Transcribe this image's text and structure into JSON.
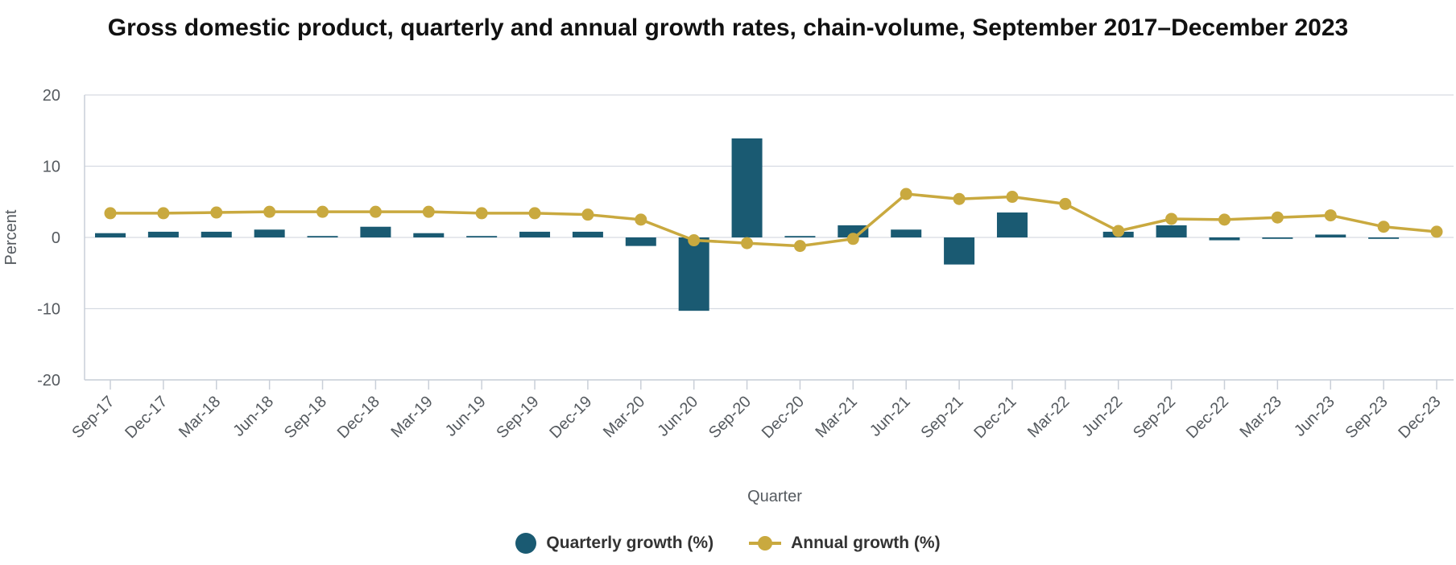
{
  "chart_data": {
    "type": "bar",
    "title": "Gross domestic product, quarterly and annual growth rates, chain-volume, September 2017–December 2023",
    "xlabel": "Quarter",
    "ylabel": "Percent",
    "ylim": [
      -20,
      20
    ],
    "yticks": [
      20,
      10,
      0,
      -10,
      -20
    ],
    "grid": true,
    "legend_position": "bottom-center",
    "categories": [
      "Sep-17",
      "Dec-17",
      "Mar-18",
      "Jun-18",
      "Sep-18",
      "Dec-18",
      "Mar-19",
      "Jun-19",
      "Sep-19",
      "Dec-19",
      "Mar-20",
      "Jun-20",
      "Sep-20",
      "Dec-20",
      "Mar-21",
      "Jun-21",
      "Sep-21",
      "Dec-21",
      "Mar-22",
      "Jun-22",
      "Sep-22",
      "Dec-22",
      "Mar-23",
      "Jun-23",
      "Sep-23",
      "Dec-23"
    ],
    "series": [
      {
        "name": "Quarterly growth (%)",
        "type": "bar",
        "color": "#1a5a72",
        "values": [
          0.6,
          0.8,
          0.8,
          1.1,
          0.2,
          1.5,
          0.6,
          0.2,
          0.8,
          0.8,
          -1.2,
          -10.3,
          13.9,
          0.2,
          1.7,
          1.1,
          -3.8,
          3.5,
          null,
          0.8,
          1.7,
          -0.4,
          -0.2,
          0.4,
          -0.2,
          null
        ]
      },
      {
        "name": "Annual growth (%)",
        "type": "line",
        "color": "#c9a93f",
        "values": [
          3.4,
          3.4,
          3.5,
          3.6,
          3.6,
          3.6,
          3.6,
          3.4,
          3.4,
          3.2,
          2.5,
          -0.4,
          -0.8,
          -1.2,
          -0.2,
          6.1,
          5.4,
          5.7,
          4.7,
          0.9,
          2.6,
          2.5,
          2.8,
          3.1,
          1.5,
          0.8
        ]
      }
    ]
  }
}
